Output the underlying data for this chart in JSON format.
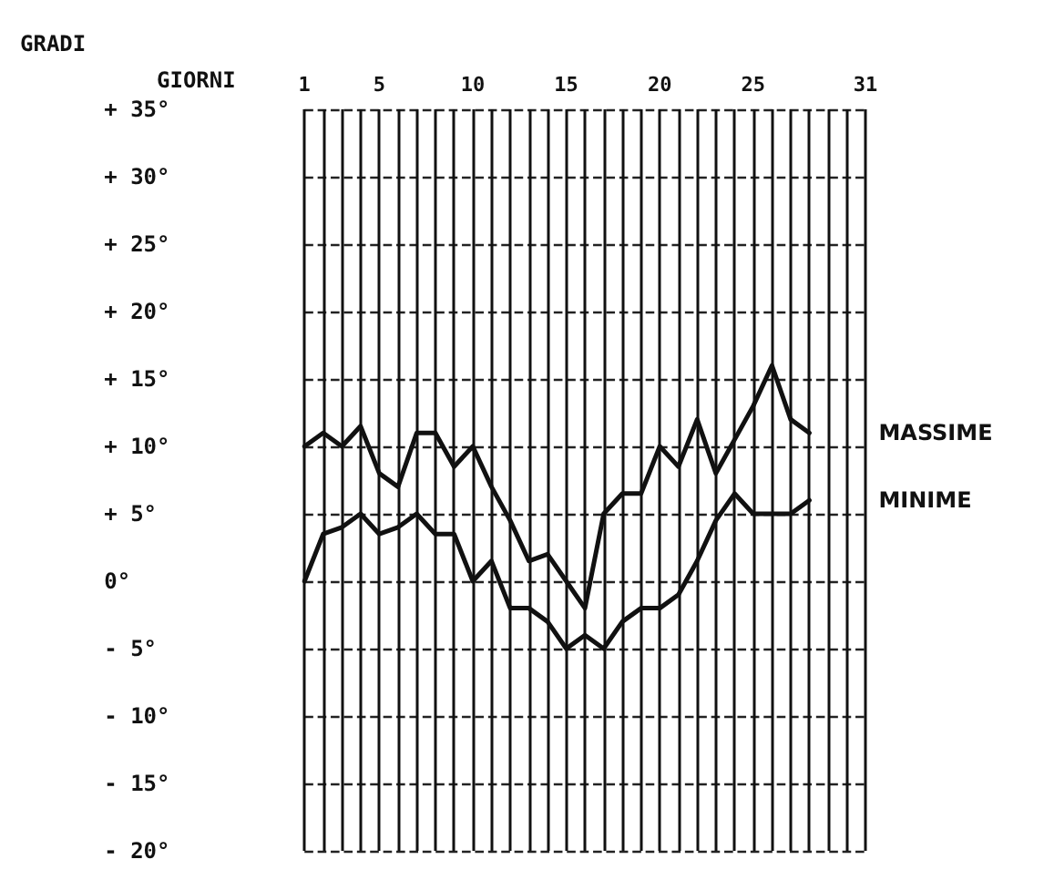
{
  "chart_data": {
    "type": "line",
    "xlabel": "GIORNI",
    "ylabel": "GRADI",
    "xlim": [
      1,
      31
    ],
    "ylim": [
      -20,
      35
    ],
    "xticks": [
      1,
      {
        "value": 2,
        "label": null
      },
      {
        "value": 3,
        "label": null
      },
      {
        "value": 4,
        "label": null
      },
      5,
      {
        "value": 6,
        "label": null
      },
      {
        "value": 7,
        "label": null
      },
      {
        "value": 8,
        "label": null
      },
      {
        "value": 9,
        "label": null
      },
      10,
      {
        "value": 11,
        "label": null
      },
      {
        "value": 12,
        "label": null
      },
      {
        "value": 13,
        "label": null
      },
      {
        "value": 14,
        "label": null
      },
      15,
      {
        "value": 16,
        "label": null
      },
      {
        "value": 17,
        "label": null
      },
      {
        "value": 18,
        "label": null
      },
      {
        "value": 19,
        "label": null
      },
      20,
      {
        "value": 21,
        "label": null
      },
      {
        "value": 22,
        "label": null
      },
      {
        "value": 23,
        "label": null
      },
      {
        "value": 24,
        "label": null
      },
      25,
      {
        "value": 26,
        "label": null
      },
      {
        "value": 27,
        "label": null
      },
      {
        "value": 28,
        "label": null
      },
      {
        "value": 29,
        "label": null
      },
      {
        "value": 30,
        "label": null
      },
      31
    ],
    "yticks": [
      {
        "value": -20,
        "label": "- 20°"
      },
      {
        "value": -15,
        "label": "- 15°"
      },
      {
        "value": -10,
        "label": "- 10°"
      },
      {
        "value": -5,
        "label": "- 5°"
      },
      {
        "value": 0,
        "label": "0°"
      },
      {
        "value": 5,
        "label": "+ 5°"
      },
      {
        "value": 10,
        "label": "+ 10°"
      },
      {
        "value": 15,
        "label": "+ 15°"
      },
      {
        "value": 20,
        "label": "+ 20°"
      },
      {
        "value": 25,
        "label": "+ 25°"
      },
      {
        "value": 30,
        "label": "+ 30°"
      },
      {
        "value": 35,
        "label": "+ 35°"
      }
    ],
    "x": [
      1,
      2,
      3,
      4,
      5,
      6,
      7,
      8,
      9,
      10,
      11,
      12,
      13,
      14,
      15,
      16,
      17,
      18,
      19,
      20,
      21,
      22,
      23,
      24,
      25,
      26,
      27,
      28
    ],
    "series": [
      {
        "name": "MASSIME",
        "color": "#111111",
        "values": [
          10,
          11,
          10,
          11.5,
          8,
          7,
          11,
          11,
          8.5,
          10,
          7,
          4.5,
          1.5,
          2,
          0,
          -2,
          5,
          6.5,
          6.5,
          10,
          8.5,
          12,
          8,
          10.5,
          13,
          16,
          12,
          11
        ]
      },
      {
        "name": "MINIME",
        "color": "#111111",
        "values": [
          0,
          3.5,
          4,
          5,
          3.5,
          4,
          5,
          3.5,
          3.5,
          0,
          1.5,
          -2,
          -2,
          -3,
          -5,
          -4,
          -5,
          -3,
          -2,
          -2,
          -1,
          1.5,
          4.5,
          6.5,
          5,
          5,
          5,
          6
        ]
      }
    ],
    "grid": true,
    "legend": false,
    "marker": "none",
    "line_style": "solid"
  }
}
